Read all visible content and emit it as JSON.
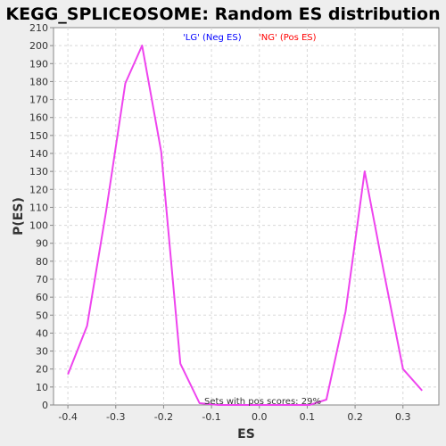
{
  "chart_data": {
    "type": "line",
    "title": "KEGG_SPLICEOSOME: Random ES distribution",
    "xlabel": "ES",
    "ylabel": "P(ES)",
    "xlim": [
      -0.43,
      0.375
    ],
    "ylim": [
      0,
      210
    ],
    "x_ticks": [
      -0.4,
      -0.3,
      -0.2,
      -0.1,
      0.0,
      0.1,
      0.2,
      0.3
    ],
    "x_tick_labels": [
      "-0.4",
      "-0.3",
      "-0.2",
      "-0.1",
      "0.0",
      "0.1",
      "0.2",
      "0.3"
    ],
    "y_ticks": [
      0,
      10,
      20,
      30,
      40,
      50,
      60,
      70,
      80,
      90,
      100,
      110,
      120,
      130,
      140,
      150,
      160,
      170,
      180,
      190,
      200,
      210
    ],
    "grid": true,
    "legend": {
      "placement": "top-center",
      "entries": [
        {
          "label": "'LG' (Neg ES)",
          "color": "#0000ff"
        },
        {
          "label": "'NG' (Pos ES)",
          "color": "#ff0000"
        }
      ]
    },
    "annotation": "Sets with pos scores: 29%",
    "series": [
      {
        "color": "#ee44ee",
        "x": [
          -0.4,
          -0.36,
          -0.32,
          -0.28,
          -0.245,
          -0.205,
          -0.165,
          -0.125,
          -0.085,
          -0.045,
          -0.005,
          0.035,
          0.075,
          0.105,
          0.14,
          0.18,
          0.22,
          0.26,
          0.3,
          0.34
        ],
        "y": [
          17,
          44,
          108,
          179,
          200,
          141,
          23,
          1,
          0,
          0,
          0,
          0,
          0,
          0,
          3,
          52,
          130,
          74,
          20,
          8
        ]
      }
    ]
  }
}
